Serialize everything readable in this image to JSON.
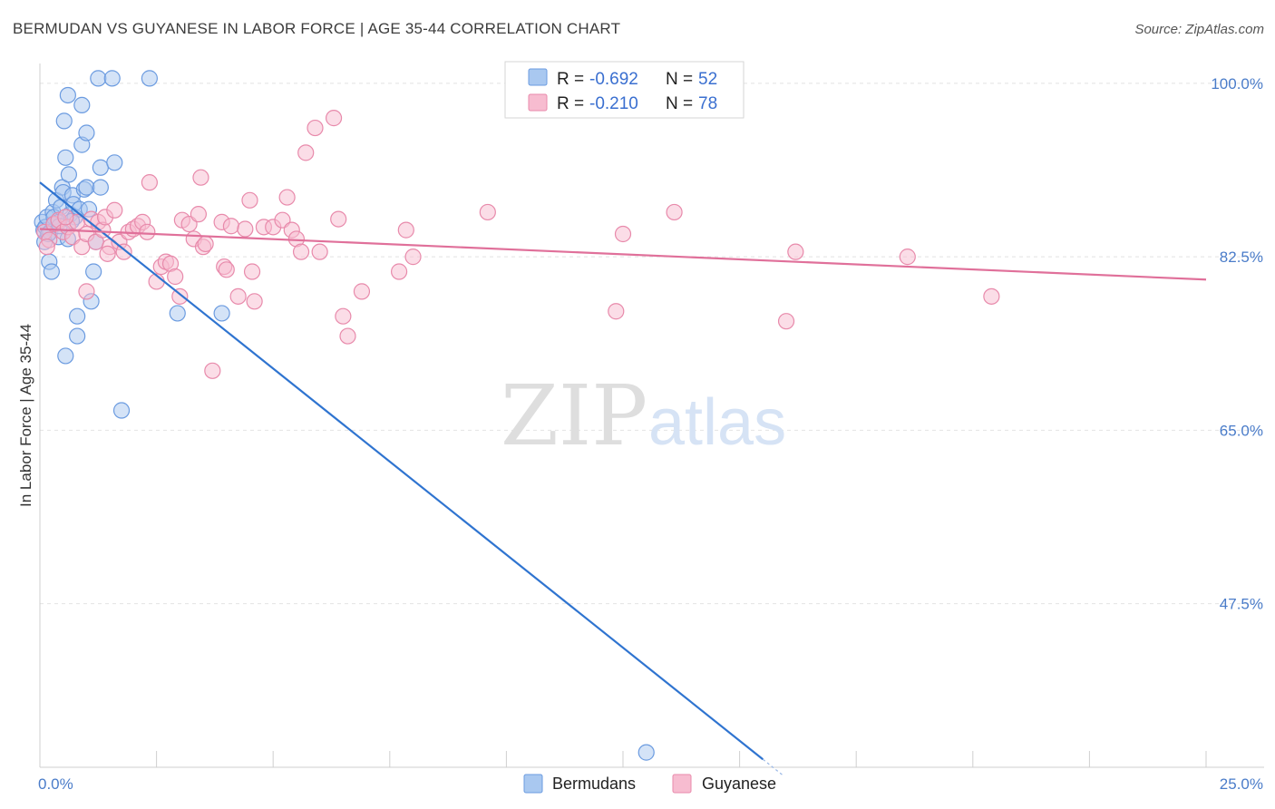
{
  "title": "BERMUDAN VS GUYANESE IN LABOR FORCE | AGE 35-44 CORRELATION CHART",
  "source": "Source: ZipAtlas.com",
  "watermark": {
    "zip": "ZIP",
    "atlas": "atlas"
  },
  "legend": {
    "rows": [
      {
        "r_label": "R =",
        "r_value": "-0.692",
        "n_label": "N =",
        "n_value": "52",
        "color": "#a9c8f0",
        "edge": "#6b9be0"
      },
      {
        "r_label": "R =",
        "r_value": "-0.210",
        "n_label": "N =",
        "n_value": "78",
        "color": "#f7bcd0",
        "edge": "#e88aab"
      }
    ]
  },
  "bottom_legend": [
    {
      "label": "Bermudans",
      "color": "#a9c8f0",
      "edge": "#6b9be0"
    },
    {
      "label": "Guyanese",
      "color": "#f7bcd0",
      "edge": "#e88aab"
    }
  ],
  "chart_data": {
    "type": "scatter",
    "title": "BERMUDAN VS GUYANESE IN LABOR FORCE | AGE 35-44 CORRELATION CHART",
    "xlabel": "",
    "ylabel": "In Labor Force | Age 35-44",
    "xlim": [
      0,
      25
    ],
    "ylim": [
      31,
      102
    ],
    "x_tick_labels": [
      "0.0%",
      "25.0%"
    ],
    "y_ticks": [
      100,
      82.5,
      65,
      47.5
    ],
    "y_tick_labels": [
      "100.0%",
      "82.5%",
      "65.0%",
      "47.5%"
    ],
    "grid": true,
    "legend_position": "top-center",
    "series": [
      {
        "name": "Bermudans",
        "color": "#6b9be0",
        "fill": "#a9c8f0",
        "trend": {
          "x": [
            0,
            15.5
          ],
          "y": [
            90.0,
            31.8
          ]
        },
        "points": [
          [
            0.05,
            86.0
          ],
          [
            0.08,
            85.2
          ],
          [
            0.1,
            84.0
          ],
          [
            0.12,
            85.5
          ],
          [
            0.15,
            86.5
          ],
          [
            0.2,
            82.0
          ],
          [
            0.22,
            85.0
          ],
          [
            0.25,
            81.0
          ],
          [
            0.28,
            87.0
          ],
          [
            0.3,
            86.5
          ],
          [
            0.35,
            88.2
          ],
          [
            0.4,
            84.5
          ],
          [
            0.4,
            86.0
          ],
          [
            0.45,
            87.5
          ],
          [
            0.48,
            89.5
          ],
          [
            0.5,
            89.0
          ],
          [
            0.52,
            96.2
          ],
          [
            0.55,
            92.5
          ],
          [
            0.55,
            72.5
          ],
          [
            0.6,
            98.8
          ],
          [
            0.6,
            84.3
          ],
          [
            0.62,
            90.8
          ],
          [
            0.65,
            86.8
          ],
          [
            0.7,
            88.7
          ],
          [
            0.72,
            87.8
          ],
          [
            0.75,
            86.5
          ],
          [
            0.8,
            76.5
          ],
          [
            0.8,
            74.5
          ],
          [
            0.85,
            87.3
          ],
          [
            0.9,
            93.8
          ],
          [
            0.9,
            97.8
          ],
          [
            0.95,
            89.3
          ],
          [
            1.0,
            95.0
          ],
          [
            1.0,
            89.5
          ],
          [
            1.05,
            87.3
          ],
          [
            1.1,
            78.0
          ],
          [
            1.15,
            81.0
          ],
          [
            1.2,
            84.0
          ],
          [
            1.25,
            100.5
          ],
          [
            1.3,
            91.5
          ],
          [
            1.3,
            89.5
          ],
          [
            1.55,
            100.5
          ],
          [
            1.6,
            92.0
          ],
          [
            1.75,
            67.0
          ],
          [
            2.35,
            100.5
          ],
          [
            2.95,
            76.8
          ],
          [
            3.9,
            76.8
          ],
          [
            13.0,
            32.5
          ],
          [
            0.3,
            85.8
          ],
          [
            0.18,
            84.8
          ],
          [
            0.42,
            85.6
          ],
          [
            0.68,
            86.1
          ]
        ]
      },
      {
        "name": "Guyanese",
        "color": "#e88aab",
        "fill": "#f7bcd0",
        "trend": {
          "x": [
            0,
            25
          ],
          "y": [
            85.3,
            80.2
          ]
        },
        "points": [
          [
            0.1,
            85.0
          ],
          [
            0.2,
            84.2
          ],
          [
            0.3,
            85.8
          ],
          [
            0.4,
            86.2
          ],
          [
            0.5,
            85.0
          ],
          [
            0.6,
            85.5
          ],
          [
            0.7,
            84.5
          ],
          [
            0.8,
            86.0
          ],
          [
            0.9,
            83.5
          ],
          [
            1.0,
            84.8
          ],
          [
            1.0,
            79.0
          ],
          [
            1.1,
            86.3
          ],
          [
            1.2,
            84.0
          ],
          [
            1.25,
            86.0
          ],
          [
            1.35,
            85.2
          ],
          [
            1.4,
            86.5
          ],
          [
            1.5,
            83.5
          ],
          [
            1.6,
            87.2
          ],
          [
            1.7,
            84.0
          ],
          [
            1.8,
            83.0
          ],
          [
            1.9,
            85.0
          ],
          [
            2.0,
            85.3
          ],
          [
            2.1,
            85.6
          ],
          [
            2.2,
            86.0
          ],
          [
            2.3,
            85.0
          ],
          [
            2.35,
            90.0
          ],
          [
            2.5,
            80.0
          ],
          [
            2.6,
            81.5
          ],
          [
            2.7,
            82.0
          ],
          [
            2.8,
            81.8
          ],
          [
            3.0,
            78.5
          ],
          [
            3.05,
            86.2
          ],
          [
            3.2,
            85.8
          ],
          [
            3.3,
            84.3
          ],
          [
            3.4,
            86.8
          ],
          [
            3.45,
            90.5
          ],
          [
            3.5,
            83.5
          ],
          [
            3.55,
            83.8
          ],
          [
            3.7,
            71.0
          ],
          [
            3.9,
            86.0
          ],
          [
            3.95,
            81.5
          ],
          [
            4.0,
            81.2
          ],
          [
            4.1,
            85.6
          ],
          [
            4.25,
            78.5
          ],
          [
            4.4,
            85.3
          ],
          [
            4.5,
            88.2
          ],
          [
            4.6,
            78.0
          ],
          [
            4.8,
            85.5
          ],
          [
            5.0,
            85.5
          ],
          [
            5.2,
            86.2
          ],
          [
            5.3,
            88.5
          ],
          [
            5.4,
            85.2
          ],
          [
            5.5,
            84.3
          ],
          [
            5.6,
            83.0
          ],
          [
            5.7,
            93.0
          ],
          [
            5.9,
            95.5
          ],
          [
            6.0,
            83.0
          ],
          [
            6.3,
            96.5
          ],
          [
            6.4,
            86.3
          ],
          [
            6.5,
            76.5
          ],
          [
            6.6,
            74.5
          ],
          [
            6.9,
            79.0
          ],
          [
            7.7,
            81.0
          ],
          [
            7.85,
            85.2
          ],
          [
            8.0,
            82.5
          ],
          [
            9.6,
            87.0
          ],
          [
            12.35,
            77.0
          ],
          [
            12.5,
            84.8
          ],
          [
            13.6,
            87.0
          ],
          [
            16.0,
            76.0
          ],
          [
            16.2,
            83.0
          ],
          [
            18.6,
            82.5
          ],
          [
            20.4,
            78.5
          ],
          [
            0.15,
            83.5
          ],
          [
            0.55,
            86.5
          ],
          [
            1.45,
            82.8
          ],
          [
            2.9,
            80.5
          ],
          [
            4.55,
            81.0
          ]
        ]
      }
    ]
  }
}
